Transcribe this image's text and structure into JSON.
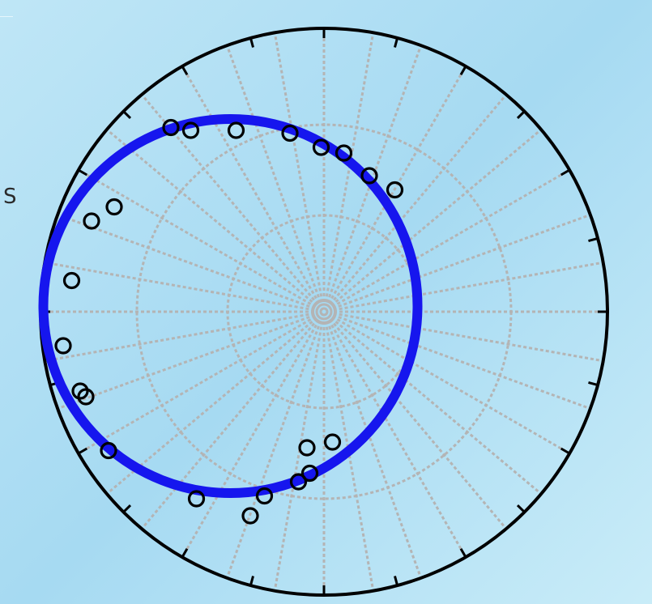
{
  "side_label": "S",
  "colors": {
    "background": "#b3e0f5",
    "primitive_circle": "#000000",
    "grid": "#b4b4b4",
    "fitted_circle": "#1616ee",
    "points": "#000000"
  },
  "chart_data": {
    "type": "scatter",
    "projection": "stereonet",
    "grid": true,
    "grid_rings_fraction": [
      0.34,
      0.66
    ],
    "grid_spoke_step_deg": 10,
    "tick_step_deg": 15,
    "points": [
      {
        "x": -0.54,
        "y": 0.65
      },
      {
        "x": -0.47,
        "y": 0.64
      },
      {
        "x": -0.31,
        "y": 0.64
      },
      {
        "x": -0.12,
        "y": 0.63
      },
      {
        "x": -0.01,
        "y": 0.58
      },
      {
        "x": 0.07,
        "y": 0.56
      },
      {
        "x": 0.16,
        "y": 0.48
      },
      {
        "x": 0.25,
        "y": 0.43
      },
      {
        "x": -0.74,
        "y": 0.37
      },
      {
        "x": -0.82,
        "y": 0.32
      },
      {
        "x": -0.89,
        "y": 0.11
      },
      {
        "x": -0.92,
        "y": -0.12
      },
      {
        "x": -0.86,
        "y": -0.28
      },
      {
        "x": -0.84,
        "y": -0.3
      },
      {
        "x": -0.76,
        "y": -0.49
      },
      {
        "x": -0.45,
        "y": -0.66
      },
      {
        "x": -0.21,
        "y": -0.65
      },
      {
        "x": -0.26,
        "y": -0.72
      },
      {
        "x": -0.09,
        "y": -0.6
      },
      {
        "x": -0.05,
        "y": -0.57
      },
      {
        "x": -0.06,
        "y": -0.48
      },
      {
        "x": 0.03,
        "y": -0.46
      }
    ],
    "fitted_circle": {
      "cx": -0.33,
      "cy": 0.02,
      "r": 0.66
    }
  }
}
